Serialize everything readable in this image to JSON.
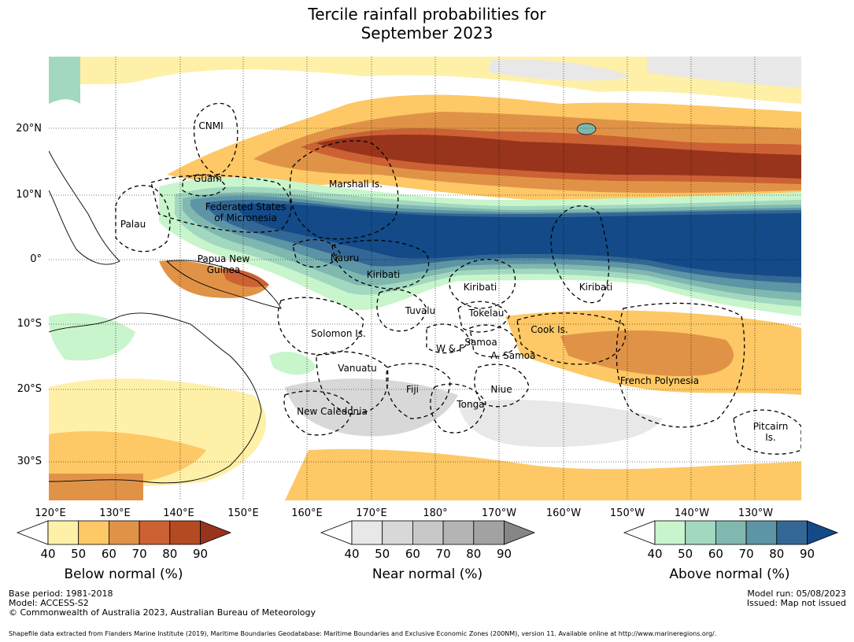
{
  "title": {
    "line1": "Tercile rainfall probabilities for",
    "line2": "September 2023"
  },
  "map": {
    "lat_labels": [
      "20°N",
      "10°N",
      "0°",
      "10°S",
      "20°S",
      "30°S"
    ],
    "lon_labels": [
      "120°E",
      "130°E",
      "140°E",
      "150°E",
      "160°E",
      "170°E",
      "180°",
      "170°W",
      "160°W",
      "150°W",
      "140°W",
      "130°W"
    ],
    "regions": [
      "CNMI",
      "Guam",
      "Marshall Is.",
      "Federated States",
      "of Micronesia",
      "Palau",
      "Papua New",
      "Guinea",
      "Nauru",
      "Kiribati",
      "Kiribati",
      "Kiribati",
      "Tuvalu",
      "Tokelau",
      "Solomon Is.",
      "Cook Is.",
      "Samoa",
      "W & F",
      "A. Samoa",
      "Vanuatu",
      "Fiji",
      "Niue",
      "French Polynesia",
      "New Caledonia",
      "Tonga",
      "Pitcairn",
      "Is."
    ]
  },
  "legends": [
    {
      "label": "Below normal (%)",
      "ticks": [
        "40",
        "50",
        "60",
        "70",
        "80",
        "90"
      ],
      "colors": [
        "#ffffff",
        "#fff0a8",
        "#fdc865",
        "#e09346",
        "#cc6133",
        "#b34a22",
        "#98341c"
      ]
    },
    {
      "label": "Near normal (%)",
      "ticks": [
        "40",
        "50",
        "60",
        "70",
        "80",
        "90"
      ],
      "colors": [
        "#ffffff",
        "#e8e8e8",
        "#d8d8d8",
        "#c8c8c8",
        "#b4b4b4",
        "#a2a2a2",
        "#868686"
      ]
    },
    {
      "label": "Above normal (%)",
      "ticks": [
        "40",
        "50",
        "60",
        "70",
        "80",
        "90"
      ],
      "colors": [
        "#ffffff",
        "#c8f5cc",
        "#a2d8c0",
        "#80b8b0",
        "#5c95a5",
        "#336795",
        "#134a87"
      ]
    }
  ],
  "footer": {
    "base_period": "Base period: 1981-2018",
    "model": "Model: ACCESS-S2",
    "copyright": "© Commonwealth of Australia 2023, Australian Bureau of Meteorology",
    "model_run": "Model run: 05/08/2023",
    "issued": "Issued: Map not issued",
    "shapefile": "Shapefile data extracted from Flanders Marine Institute (2019), Maritime Boundaries Geodatabase: Maritime Boundaries and Exclusive Economic Zones (200NM), version 11. Available online at http://www.marineregions.org/."
  }
}
